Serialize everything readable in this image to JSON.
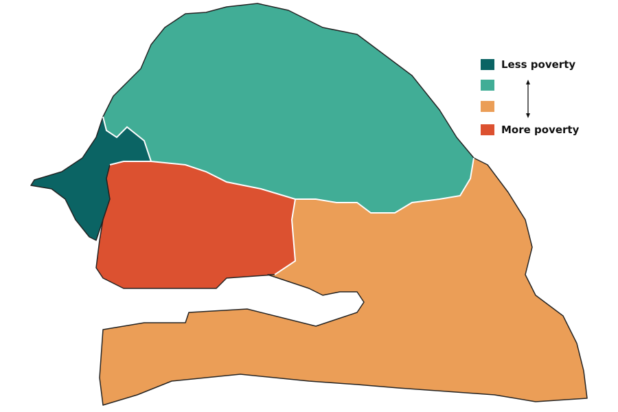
{
  "map": {
    "country": "Senegal",
    "regions": [
      {
        "id": "north",
        "poverty_level": 2,
        "color": "#41ad96"
      },
      {
        "id": "west",
        "poverty_level": 1,
        "color": "#0b6464"
      },
      {
        "id": "center-west",
        "poverty_level": 4,
        "color": "#dc5130"
      },
      {
        "id": "south-east",
        "poverty_level": 3,
        "color": "#eb9e57"
      }
    ]
  },
  "legend": {
    "items": [
      {
        "label": "Less poverty",
        "color": "#0b6464"
      },
      {
        "label": "",
        "color": "#41ad96"
      },
      {
        "label": "",
        "color": "#eb9e57"
      },
      {
        "label": "More poverty",
        "color": "#dc5130"
      }
    ],
    "arrow_icon": "double-arrow-vertical"
  }
}
